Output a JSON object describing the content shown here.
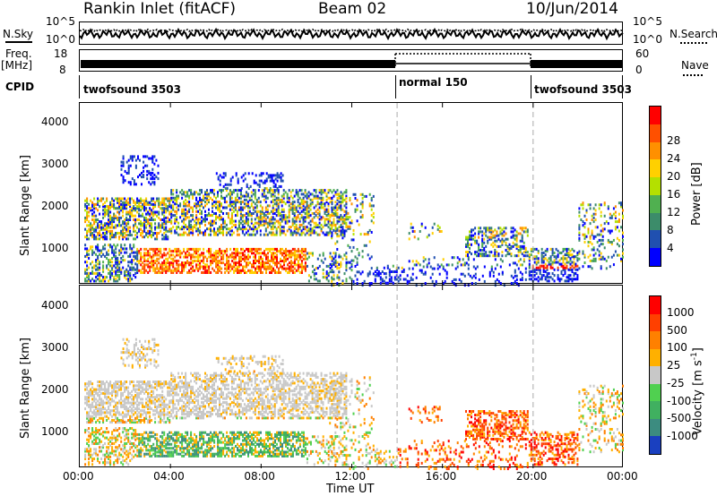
{
  "header": {
    "station": "Rankin Inlet (fitACF)",
    "beam": "Beam 02",
    "date": "10/Jun/2014"
  },
  "top_strip": {
    "nsky_label": "N.Sky",
    "nsky_ticks": [
      "10^5",
      "10^0"
    ],
    "nsearch_label": "N.Search",
    "nsearch_ticks": [
      "10^5",
      "10^0"
    ],
    "freq_label": "Freq.",
    "freq_unit": "[MHz]",
    "freq_ticks": [
      "18",
      "8"
    ],
    "nave_label": "Nave",
    "nave_ticks": [
      "60",
      "0"
    ],
    "cpid_label": "CPID",
    "cpid_segments": [
      {
        "label": "twofsound 3503",
        "start": 0,
        "end": 14
      },
      {
        "label": "normal 150",
        "start": 14,
        "end": 20
      },
      {
        "label": "twofsound 3503",
        "start": 20,
        "end": 24
      }
    ]
  },
  "chart_data": [
    {
      "type": "heatmap",
      "title": "",
      "xlabel": "Time UT",
      "ylabel": "Slant Range [km]",
      "xlim": [
        0,
        24
      ],
      "ylim": [
        180,
        4500
      ],
      "x_ticks": [
        "00:00",
        "04:00",
        "08:00",
        "12:00",
        "16:00",
        "20:00",
        "00:00"
      ],
      "y_ticks": [
        1000,
        2000,
        3000,
        4000
      ],
      "colorbar_label": "Power [dB]",
      "colorbar_ticks": [
        "4",
        "8",
        "12",
        "16",
        "20",
        "24",
        "28"
      ],
      "colorbar_range": [
        0,
        30
      ],
      "colors": [
        "#0000ff",
        "#2050b0",
        "#3c8c6a",
        "#50b050",
        "#b4e000",
        "#ffd000",
        "#ff9000",
        "#ff5000",
        "#ff0000"
      ],
      "mode_boundaries": [
        14,
        20
      ]
    },
    {
      "type": "heatmap",
      "title": "",
      "xlabel": "Time UT",
      "ylabel": "Slant Range [km]",
      "xlim": [
        0,
        24
      ],
      "ylim": [
        180,
        4500
      ],
      "x_ticks": [
        "00:00",
        "04:00",
        "08:00",
        "12:00",
        "16:00",
        "20:00",
        "00:00"
      ],
      "y_ticks": [
        1000,
        2000,
        3000,
        4000
      ],
      "colorbar_label": "Velocity [m s^-1]",
      "colorbar_ticks": [
        "1000",
        "500",
        "100",
        "25",
        "-25",
        "-100",
        "-500",
        "-1000"
      ],
      "colors": [
        "#1a40c0",
        "#3c8c80",
        "#40b060",
        "#50d050",
        "#c8c8c8",
        "#ffb000",
        "#ff8000",
        "#ff4000",
        "#ff0000"
      ],
      "mode_boundaries": [
        14,
        20
      ]
    }
  ],
  "xaxis_title": "Time UT"
}
